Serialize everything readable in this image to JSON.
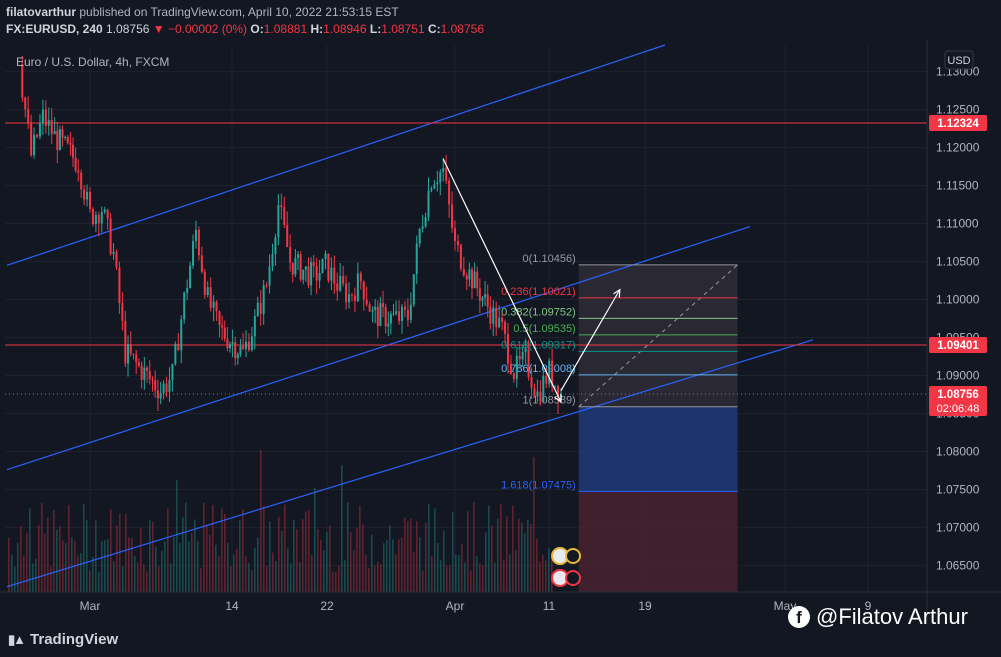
{
  "publish_line": {
    "author": "filatovarthur",
    "rest": " published on TradingView.com, April 10, 2022 21:53:15 EST"
  },
  "ohlc": {
    "symbol": "FX:EURUSD, 240",
    "last": "1.08756",
    "change": "▼ −0.00002 (0%)",
    "o_label": "O:",
    "o": "1.08881",
    "h_label": "H:",
    "h": "1.08946",
    "l_label": "L:",
    "l": "1.08751",
    "c_label": "C:",
    "c": "1.08756"
  },
  "legend_title": "Euro / U.S. Dollar, 4h, FXCM",
  "currency_button": "USD",
  "branding": {
    "tradingview": "TradingView",
    "watermark": "@Filatov Arthur"
  },
  "colors": {
    "bull": "#26a69a",
    "bear": "#f23645",
    "channel": "#2962ff",
    "hline": "#f23645",
    "bg": "#131722"
  },
  "chart_data": {
    "type": "line",
    "title": "Euro / U.S. Dollar, 4h, FXCM",
    "instrument": "FX:EURUSD",
    "timeframe": "240",
    "y_axis": {
      "label": "USD",
      "ticks": [
        1.065,
        1.07,
        1.075,
        1.08,
        1.085,
        1.09,
        1.095,
        1.1,
        1.105,
        1.11,
        1.115,
        1.12,
        1.125,
        1.13
      ],
      "ylim": [
        1.0615,
        1.1335
      ]
    },
    "x_axis": {
      "ticks": [
        "Mar",
        "14",
        "22",
        "Apr",
        "11",
        "19",
        "May",
        "9"
      ]
    },
    "price_labels": [
      {
        "value": 1.12324,
        "text": "1.12324"
      },
      {
        "value": 1.09401,
        "text": "1.09401"
      },
      {
        "value": 1.08756,
        "text": "1.08756",
        "countdown": "02:06:48"
      }
    ],
    "horizontal_lines": [
      1.12324,
      1.09401
    ],
    "fibonacci": [
      {
        "ratio": "0",
        "text": "0(1.10456)",
        "value": 1.10456
      },
      {
        "ratio": "0.236",
        "text": "0.236(1.10021)",
        "value": 1.10021
      },
      {
        "ratio": "0.382",
        "text": "0.382(1.09752)",
        "value": 1.09752
      },
      {
        "ratio": "0.5",
        "text": "0.5(1.09535)",
        "value": 1.09535
      },
      {
        "ratio": "0.618",
        "text": "0.618(1.09317)",
        "value": 1.09317
      },
      {
        "ratio": "0.786",
        "text": "0.786(1.09008)",
        "value": 1.09008
      },
      {
        "ratio": "1",
        "text": "1(1.08589)",
        "value": 1.08589
      },
      {
        "ratio": "1.618",
        "text": "1.618(1.07475)",
        "value": 1.07475
      }
    ],
    "price_path": [
      {
        "x": "Feb 23",
        "y": 1.131
      },
      {
        "x": "Feb 24",
        "y": 1.119
      },
      {
        "x": "Feb 25",
        "y": 1.124
      },
      {
        "x": "Feb 26",
        "y": 1.1215
      },
      {
        "x": "Feb 28",
        "y": 1.118
      },
      {
        "x": "Mar 1",
        "y": 1.111
      },
      {
        "x": "Mar 2",
        "y": 1.112
      },
      {
        "x": "Mar 3",
        "y": 1.106
      },
      {
        "x": "Mar 4",
        "y": 1.093
      },
      {
        "x": "Mar 7",
        "y": 1.088
      },
      {
        "x": "Mar 8",
        "y": 1.09
      },
      {
        "x": "Mar 9",
        "y": 1.1
      },
      {
        "x": "Mar 10",
        "y": 1.109
      },
      {
        "x": "Mar 11",
        "y": 1.1
      },
      {
        "x": "Mar 12",
        "y": 1.096
      },
      {
        "x": "Mar 14",
        "y": 1.093
      },
      {
        "x": "Mar 15",
        "y": 1.097
      },
      {
        "x": "Mar 16",
        "y": 1.102
      },
      {
        "x": "Mar 17",
        "y": 1.1125
      },
      {
        "x": "Mar 18",
        "y": 1.105
      },
      {
        "x": "Mar 20",
        "y": 1.103
      },
      {
        "x": "Mar 21",
        "y": 1.1045
      },
      {
        "x": "Mar 22",
        "y": 1.102
      },
      {
        "x": "Mar 23",
        "y": 1.1005
      },
      {
        "x": "Mar 24",
        "y": 1.1025
      },
      {
        "x": "Mar 25",
        "y": 1.098
      },
      {
        "x": "Mar 27",
        "y": 1.0975
      },
      {
        "x": "Mar 28",
        "y": 1.0978
      },
      {
        "x": "Mar 29",
        "y": 1.109
      },
      {
        "x": "Mar 30",
        "y": 1.116
      },
      {
        "x": "Mar 31",
        "y": 1.117
      },
      {
        "x": "Apr 1",
        "y": 1.107
      },
      {
        "x": "Apr 2",
        "y": 1.104
      },
      {
        "x": "Apr 4",
        "y": 1.0985
      },
      {
        "x": "Apr 5",
        "y": 1.096
      },
      {
        "x": "Apr 6",
        "y": 1.0905
      },
      {
        "x": "Apr 7",
        "y": 1.092
      },
      {
        "x": "Apr 8",
        "y": 1.0875
      },
      {
        "x": "Apr 9",
        "y": 1.0905
      },
      {
        "x": "Apr 10",
        "y": 1.0876
      }
    ],
    "annotations": [
      {
        "type": "arrow",
        "from": {
          "x": "Mar 31",
          "y": 1.1185
        },
        "to": {
          "x": "Apr 10",
          "y": 1.0865
        }
      },
      {
        "type": "arrow",
        "from": {
          "x": "Apr 10",
          "y": 1.088
        },
        "to": {
          "x": "Apr 15",
          "y": 1.1013
        }
      }
    ],
    "grid": true,
    "volume": true
  }
}
